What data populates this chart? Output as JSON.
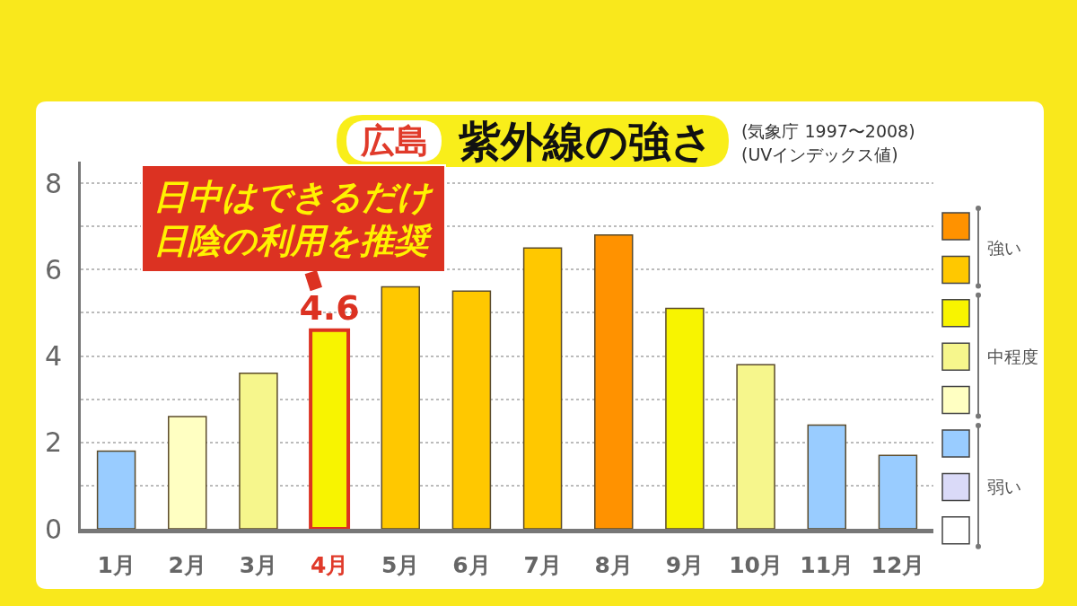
{
  "chart_data": {
    "type": "bar",
    "title": "紫外線の強さ",
    "subtitle": "広島",
    "annotations": [
      {
        "text": "日中はできるだけ日陰の利用を推奨",
        "x": "4月",
        "y": 4.6
      },
      "(気象庁 1997〜2008)",
      "(UVインデックス値)"
    ],
    "categories": [
      "1月",
      "2月",
      "3月",
      "4月",
      "5月",
      "6月",
      "7月",
      "8月",
      "9月",
      "10月",
      "11月",
      "12月"
    ],
    "series": [
      {
        "name": "強い",
        "values": [
          null,
          null,
          null,
          null,
          5.6,
          5.5,
          6.5,
          6.8,
          null,
          null,
          null,
          null
        ],
        "colors": [
          null,
          null,
          null,
          null,
          "#ffc800",
          "#ffc800",
          "#ffc800",
          "#ff9200",
          null,
          null,
          null,
          null
        ]
      },
      {
        "name": "中程度",
        "values": [
          null,
          2.6,
          3.6,
          4.6,
          null,
          null,
          null,
          null,
          5.1,
          3.8,
          null,
          null
        ],
        "colors": [
          null,
          "#ffffc2",
          "#f6f68c",
          "#f8f400",
          null,
          null,
          null,
          null,
          "#f8f400",
          "#f6f68c",
          null,
          null
        ],
        "value_labels": [
          null,
          null,
          null,
          "4.6",
          null,
          null,
          null,
          null,
          null,
          null,
          null,
          null
        ]
      },
      {
        "name": "弱い",
        "values": [
          1.8,
          null,
          null,
          null,
          null,
          null,
          null,
          null,
          null,
          null,
          2.4,
          1.7
        ],
        "colors": [
          "#99ccff",
          null,
          null,
          null,
          null,
          null,
          null,
          null,
          null,
          null,
          "#99ccff",
          "#99ccff"
        ]
      }
    ],
    "ylim": [
      0,
      8.5
    ],
    "yticks": [
      0,
      {
        "value": 1,
        "label": null
      },
      2,
      {
        "value": 3,
        "label": null
      },
      4,
      {
        "value": 5,
        "label": null
      },
      6,
      {
        "value": 7,
        "label": null
      },
      8
    ],
    "grid": "y",
    "legend": "right"
  }
}
